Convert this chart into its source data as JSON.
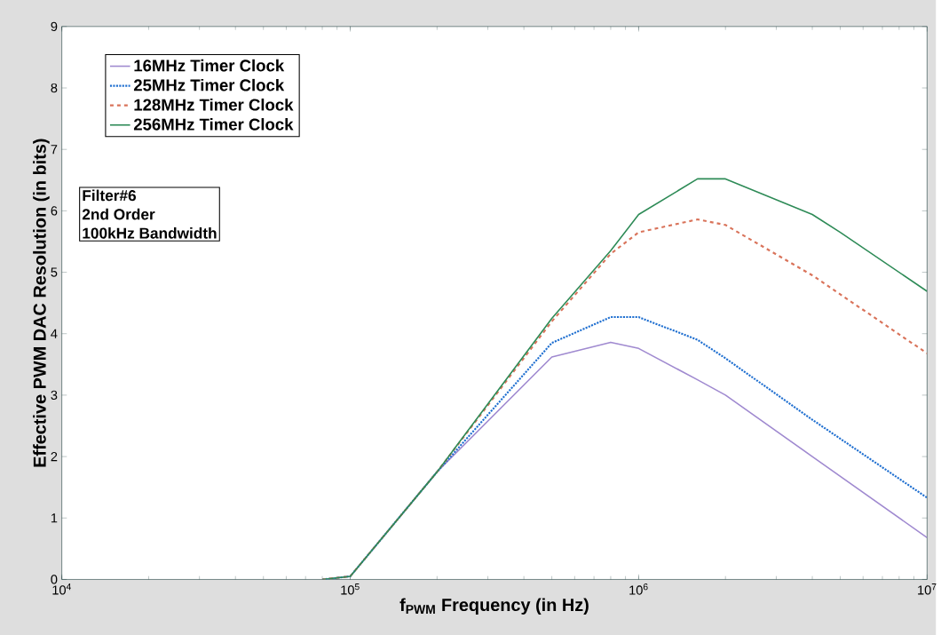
{
  "chart_data": {
    "type": "line",
    "xlabel": "f$_{PWM}$ Frequency (in Hz)",
    "ylabel": "Effective PWM DAC Resolution (in bits)",
    "log": "x",
    "xlim": [
      10000,
      10000000
    ],
    "ylim": [
      0,
      9
    ],
    "xticks": [
      {
        "value": 10000,
        "label": "10$^{4}$"
      },
      {
        "value": 100000,
        "label": "10$^{5}$"
      },
      {
        "value": 1000000,
        "label": "10$^{6}$"
      },
      {
        "value": 10000000,
        "label": "10$^{7}$"
      }
    ],
    "yticks": [
      0,
      1,
      2,
      3,
      4,
      5,
      6,
      7,
      8,
      9
    ],
    "grid": false,
    "legend": "top left",
    "marker": "none",
    "annotations": [
      "Filter#6",
      "2nd Order",
      "100kHz Bandwidth"
    ],
    "series": [
      {
        "name": "16MHz Timer Clock",
        "color": "#a08ad0",
        "line_style": "solid",
        "x": [
          80000,
          100000,
          200000,
          500000,
          800000,
          1000000,
          1600000,
          2000000,
          4000000,
          10000000
        ],
        "values": [
          0,
          0.05,
          1.75,
          3.62,
          3.86,
          3.76,
          3.25,
          3.0,
          2.0,
          0.68
        ]
      },
      {
        "name": "25MHz Timer Clock",
        "color": "#1f6fd0",
        "line_style": "dotted",
        "x": [
          80000,
          100000,
          200000,
          500000,
          800000,
          1000000,
          1600000,
          2000000,
          4000000,
          10000000
        ],
        "values": [
          0,
          0.05,
          1.75,
          3.85,
          4.27,
          4.27,
          3.9,
          3.6,
          2.6,
          1.33
        ]
      },
      {
        "name": "128MHz Timer Clock",
        "color": "#d9735a",
        "line_style": "dashed",
        "x": [
          80000,
          100000,
          200000,
          500000,
          800000,
          1000000,
          1600000,
          2000000,
          4000000,
          10000000
        ],
        "values": [
          0,
          0.05,
          1.75,
          4.2,
          5.3,
          5.65,
          5.86,
          5.77,
          4.95,
          3.68
        ]
      },
      {
        "name": "256MHz Timer Clock",
        "color": "#2e8b57",
        "line_style": "solid",
        "x": [
          80000,
          100000,
          200000,
          500000,
          800000,
          1000000,
          1600000,
          2000000,
          4000000,
          5000000,
          10000000
        ],
        "values": [
          0,
          0.05,
          1.75,
          4.25,
          5.35,
          5.94,
          6.52,
          6.52,
          5.94,
          5.65,
          4.69
        ]
      }
    ]
  }
}
